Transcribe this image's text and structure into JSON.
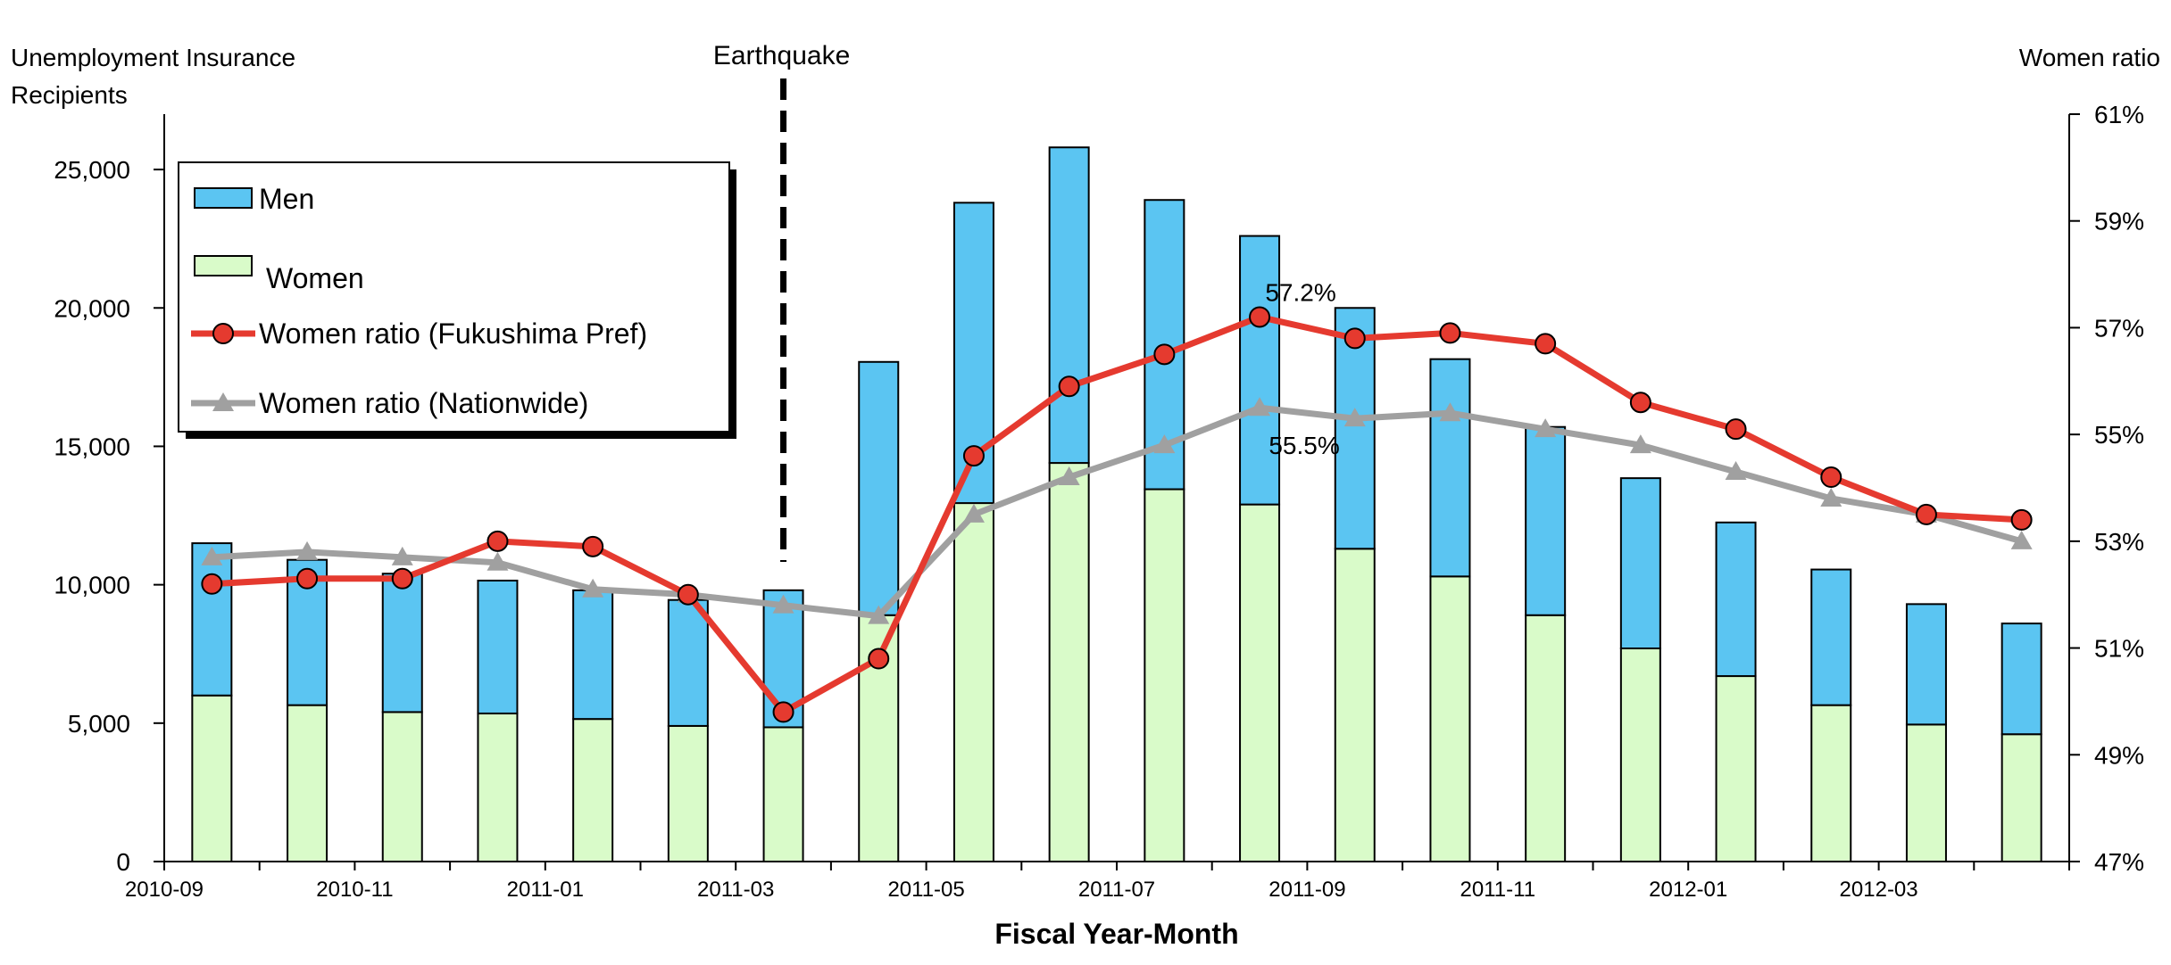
{
  "chart_data": {
    "type": "bar",
    "stacked": true,
    "xlabel": "Fiscal Year-Month",
    "ylabel": "Unemployment Insurance Recipients",
    "y2label": "Women ratio",
    "ylim": [
      0,
      27000
    ],
    "y2lim": [
      47,
      61
    ],
    "y_ticks": [
      "0",
      "5,000",
      "10,000",
      "15,000",
      "20,000",
      "25,000"
    ],
    "y2_ticks": [
      "47%",
      "49%",
      "51%",
      "53%",
      "55%",
      "57%",
      "59%",
      "61%"
    ],
    "categories": [
      "2010-09",
      "2010-10",
      "2010-11",
      "2010-12",
      "2011-01",
      "2011-02",
      "2011-03",
      "2011-04",
      "2011-05",
      "2011-06",
      "2011-07",
      "2011-08",
      "2011-09",
      "2011-10",
      "2011-11",
      "2011-12",
      "2012-01",
      "2012-02",
      "2012-03",
      "2012-04"
    ],
    "x_tick_labels": [
      "2010-09",
      "",
      "2010-11",
      "",
      "2011-01",
      "",
      "2011-03",
      "",
      "2011-05",
      "",
      "2011-07",
      "",
      "2011-09",
      "",
      "2011-11",
      "",
      "2012-01",
      "",
      "2012-03",
      ""
    ],
    "series": [
      {
        "name": "Women",
        "kind": "bar",
        "axis": "left",
        "color": "#d9fbc9",
        "values": [
          6000,
          5650,
          5400,
          5350,
          5150,
          4900,
          4850,
          8900,
          12950,
          14400,
          13450,
          12900,
          11300,
          10300,
          8900,
          7700,
          6700,
          5650,
          4950,
          4600
        ]
      },
      {
        "name": "Men",
        "kind": "bar",
        "axis": "left",
        "color": "#5bc5f2",
        "values": [
          5500,
          5250,
          5000,
          4800,
          4650,
          4550,
          4950,
          9150,
          10850,
          11400,
          10450,
          9700,
          8700,
          7850,
          6800,
          6150,
          5550,
          4900,
          4350,
          4000
        ]
      },
      {
        "name": "Women ratio (Fukushima Pref)",
        "kind": "line",
        "axis": "right",
        "color": "#e53a2f",
        "marker": "circle",
        "values": [
          52.2,
          52.3,
          52.3,
          53.0,
          52.9,
          52.0,
          49.8,
          50.8,
          54.6,
          55.9,
          56.5,
          57.2,
          56.8,
          56.9,
          56.7,
          55.6,
          55.1,
          54.2,
          53.5,
          53.4
        ]
      },
      {
        "name": "Women ratio (Nationwide)",
        "kind": "line",
        "axis": "right",
        "color": "#a0a0a0",
        "marker": "triangle",
        "values": [
          52.7,
          52.8,
          52.7,
          52.6,
          52.1,
          52.0,
          51.8,
          51.6,
          53.5,
          54.2,
          54.8,
          55.5,
          55.3,
          55.4,
          55.1,
          54.8,
          54.3,
          53.8,
          53.5,
          53.0
        ]
      }
    ],
    "legend": {
      "position": "top-left",
      "entries": [
        "Men",
        "Women",
        "Women ratio (Fukushima Pref)",
        "Women ratio (Nationwide)"
      ]
    },
    "annotations": [
      {
        "text": "Earthquake",
        "type": "vertical-dashed-line",
        "at": "2011-03"
      },
      {
        "text": "57.2%",
        "series": "Women ratio (Fukushima Pref)",
        "at": "2011-08"
      },
      {
        "text": "55.5%",
        "series": "Women ratio (Nationwide)",
        "at": "2011-08"
      }
    ]
  }
}
